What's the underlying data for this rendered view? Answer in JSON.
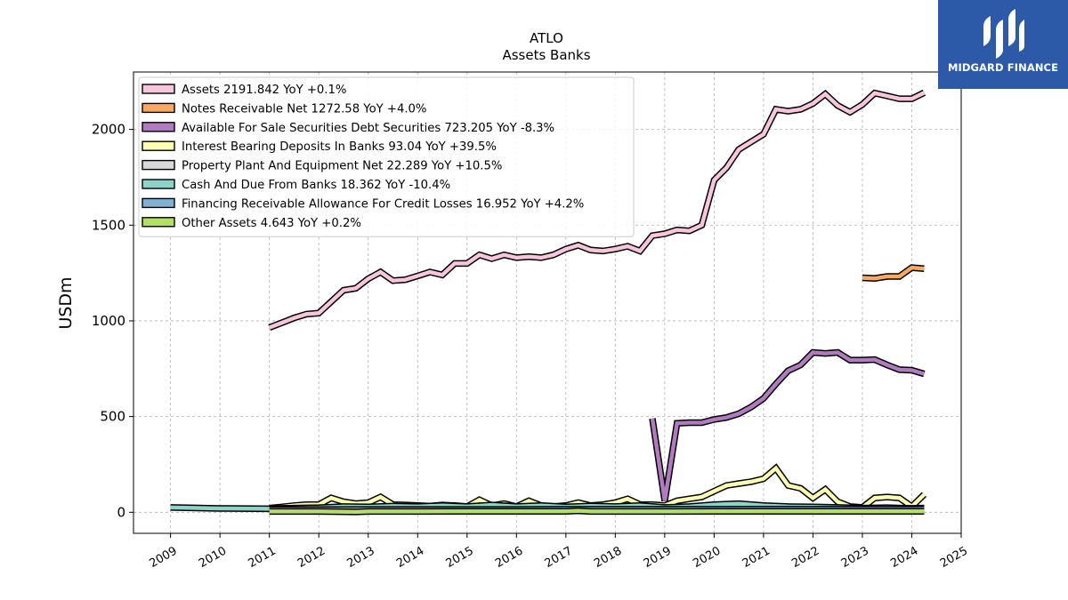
{
  "brand": {
    "name": "MIDGARD FINANCE",
    "bg_color": "#2d5aa8"
  },
  "chart_data": {
    "type": "line",
    "title": "ATLO",
    "subtitle": "Assets Banks",
    "xlabel": "",
    "ylabel": "USDm",
    "xlim": [
      2008.25,
      2025.0
    ],
    "ylim": [
      -110,
      2300
    ],
    "x_ticks": [
      "2009",
      "2010",
      "2011",
      "2012",
      "2013",
      "2014",
      "2015",
      "2016",
      "2017",
      "2018",
      "2019",
      "2020",
      "2021",
      "2022",
      "2023",
      "2024",
      "2025"
    ],
    "y_ticks": [
      0,
      500,
      1000,
      1500,
      2000
    ],
    "grid": true,
    "legend_position": "top-left",
    "series": [
      {
        "name": "Assets",
        "legend": "Assets  2191.842 YoY +0.1%",
        "color": "#f7c6dc",
        "x": [
          2011.0,
          2011.25,
          2011.5,
          2011.75,
          2012.0,
          2012.25,
          2012.5,
          2012.75,
          2013.0,
          2013.25,
          2013.5,
          2013.75,
          2014.0,
          2014.25,
          2014.5,
          2014.75,
          2015.0,
          2015.25,
          2015.5,
          2015.75,
          2016.0,
          2016.25,
          2016.5,
          2016.75,
          2017.0,
          2017.25,
          2017.5,
          2017.75,
          2018.0,
          2018.25,
          2018.5,
          2018.75,
          2019.0,
          2019.25,
          2019.5,
          2019.75,
          2020.0,
          2020.25,
          2020.5,
          2020.75,
          2021.0,
          2021.25,
          2021.5,
          2021.75,
          2022.0,
          2022.25,
          2022.5,
          2022.75,
          2023.0,
          2023.25,
          2023.5,
          2023.75,
          2024.0,
          2024.25
        ],
        "values": [
          965,
          990,
          1015,
          1035,
          1040,
          1100,
          1160,
          1170,
          1220,
          1255,
          1210,
          1215,
          1235,
          1255,
          1240,
          1300,
          1300,
          1345,
          1325,
          1345,
          1330,
          1335,
          1330,
          1345,
          1375,
          1395,
          1370,
          1365,
          1375,
          1390,
          1365,
          1445,
          1455,
          1475,
          1470,
          1500,
          1735,
          1800,
          1895,
          1935,
          1975,
          2105,
          2095,
          2105,
          2135,
          2185,
          2125,
          2090,
          2130,
          2190,
          2175,
          2160,
          2160,
          2192
        ]
      },
      {
        "name": "Notes Receivable Net",
        "legend": "Notes Receivable Net  1272.58 YoY +4.0%",
        "color": "#f8a85f",
        "x": [
          2023.0,
          2023.25,
          2023.5,
          2023.75,
          2024.0,
          2024.25
        ],
        "values": [
          1225,
          1222,
          1232,
          1232,
          1278,
          1273
        ]
      },
      {
        "name": "Available For Sale Securities Debt Securities",
        "legend": "Available For Sale Securities Debt Securities  723.205 YoY -8.3%",
        "color": "#b07cbf",
        "x": [
          2018.75,
          2019.0,
          2019.25,
          2019.5,
          2019.75,
          2020.0,
          2020.25,
          2020.5,
          2020.75,
          2021.0,
          2021.25,
          2021.5,
          2021.75,
          2022.0,
          2022.25,
          2022.5,
          2022.75,
          2023.0,
          2023.25,
          2023.5,
          2023.75,
          2024.0,
          2024.25
        ],
        "values": [
          490,
          60,
          465,
          468,
          468,
          485,
          495,
          515,
          550,
          595,
          670,
          740,
          770,
          835,
          830,
          835,
          795,
          795,
          798,
          770,
          745,
          742,
          723
        ]
      },
      {
        "name": "Interest Bearing Deposits In Banks",
        "legend": "Interest Bearing Deposits In Banks  93.04 YoY +39.5%",
        "color": "#ffffb3",
        "x": [
          2011.0,
          2011.25,
          2011.5,
          2011.75,
          2012.0,
          2012.25,
          2012.5,
          2012.75,
          2013.0,
          2013.25,
          2013.5,
          2013.75,
          2014.0,
          2014.25,
          2014.5,
          2014.75,
          2015.0,
          2015.25,
          2015.5,
          2015.75,
          2016.0,
          2016.25,
          2016.5,
          2016.75,
          2017.0,
          2017.25,
          2017.5,
          2017.75,
          2018.0,
          2018.25,
          2018.5,
          2018.75,
          2019.0,
          2019.25,
          2019.5,
          2019.75,
          2020.0,
          2020.25,
          2020.5,
          2020.75,
          2021.0,
          2021.25,
          2021.5,
          2021.75,
          2022.0,
          2022.25,
          2022.5,
          2022.75,
          2023.0,
          2023.25,
          2023.5,
          2023.75,
          2024.0,
          2024.25
        ],
        "values": [
          22,
          28,
          35,
          40,
          40,
          75,
          55,
          45,
          50,
          80,
          40,
          38,
          35,
          32,
          38,
          35,
          30,
          65,
          35,
          45,
          30,
          60,
          35,
          30,
          35,
          50,
          35,
          40,
          50,
          70,
          40,
          40,
          35,
          60,
          70,
          80,
          110,
          140,
          150,
          160,
          175,
          230,
          140,
          125,
          75,
          120,
          55,
          30,
          25,
          75,
          80,
          75,
          30,
          93
        ]
      },
      {
        "name": "Property Plant And Equipment Net",
        "legend": "Property Plant And Equipment Net  22.289 YoY +10.5%",
        "color": "#d9d9d9",
        "x": [
          2011.0,
          2012.0,
          2013.0,
          2014.0,
          2015.0,
          2016.0,
          2017.0,
          2018.0,
          2019.0,
          2020.0,
          2021.0,
          2022.0,
          2023.0,
          2024.0,
          2024.25
        ],
        "values": [
          20,
          21,
          22,
          22,
          23,
          23,
          23,
          22,
          21,
          21,
          21,
          21,
          21,
          20,
          22.3
        ]
      },
      {
        "name": "Cash And Due From Banks",
        "legend": "Cash And Due From Banks  18.362 YoY -10.4%",
        "color": "#8dd3c7",
        "x": [
          2009.0,
          2010.0,
          2011.0,
          2011.5,
          2012.0,
          2012.5,
          2013.0,
          2013.5,
          2014.0,
          2014.5,
          2015.0,
          2015.5,
          2016.0,
          2016.5,
          2017.0,
          2017.5,
          2018.0,
          2018.5,
          2019.0,
          2019.5,
          2020.0,
          2020.5,
          2021.0,
          2021.5,
          2022.0,
          2022.5,
          2023.0,
          2023.5,
          2024.0,
          2024.25
        ],
        "values": [
          25,
          20,
          18,
          22,
          24,
          30,
          28,
          32,
          30,
          35,
          30,
          38,
          30,
          35,
          28,
          33,
          30,
          35,
          25,
          30,
          40,
          45,
          35,
          30,
          28,
          25,
          22,
          24,
          20,
          18.4
        ]
      },
      {
        "name": "Financing Receivable Allowance For Credit Losses",
        "legend": "Financing Receivable Allowance For Credit Losses  16.952 YoY +4.2%",
        "color": "#80b1d3",
        "x": [
          2011.0,
          2012.0,
          2013.0,
          2014.0,
          2015.0,
          2016.0,
          2017.0,
          2018.0,
          2019.0,
          2020.0,
          2021.0,
          2022.0,
          2023.0,
          2024.0,
          2024.25
        ],
        "values": [
          14,
          14,
          15,
          15,
          15,
          15,
          16,
          16,
          16,
          16,
          17,
          17,
          16,
          16,
          17.0
        ]
      },
      {
        "name": "Other Assets",
        "legend": "Other Assets  4.643 YoY +0.2%",
        "color": "#b3de69",
        "x": [
          2011.0,
          2012.0,
          2012.75,
          2013.0,
          2014.0,
          2015.0,
          2016.0,
          2017.0,
          2017.25,
          2017.5,
          2018.0,
          2019.0,
          2020.0,
          2021.0,
          2022.0,
          2023.0,
          2024.0,
          2024.25
        ],
        "values": [
          4,
          4,
          2,
          4,
          4,
          5,
          5,
          5,
          8,
          4,
          4,
          4,
          5,
          5,
          5,
          5,
          4.6,
          4.6
        ]
      }
    ]
  }
}
